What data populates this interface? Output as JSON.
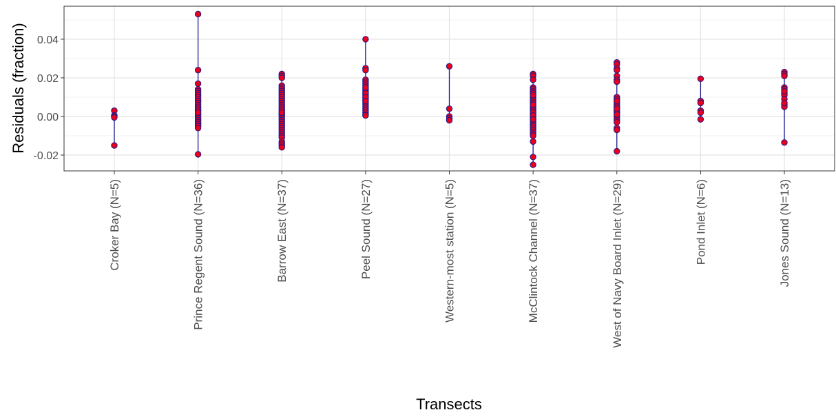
{
  "chart_data": {
    "type": "strip",
    "x_label": "Transects",
    "y_label": "Residuals (fraction)",
    "ylim": [
      -0.0282,
      0.0571
    ],
    "yticks": [
      {
        "value": -0.02,
        "label": "-0.02"
      },
      {
        "value": 0,
        "label": "0.00"
      },
      {
        "value": 0.02,
        "label": "0.02"
      },
      {
        "value": 0.04,
        "label": "0.04"
      }
    ],
    "y_minor_grid": [
      -0.01,
      0.01,
      0.03,
      0.05
    ],
    "grid": true,
    "point_fill": "#e8001c",
    "point_stroke": "#1a1a8c",
    "line_color": "#1a1a8c",
    "groups": [
      {
        "name": "Croker Bay (N=5)",
        "values": [
          0.003,
          0.0005,
          0,
          -0.0005,
          -0.015
        ]
      },
      {
        "name": "Prince Regent Sound (N=36)",
        "values": [
          0.053,
          0.024,
          0.017,
          0.014,
          0.013,
          0.012,
          0.011,
          0.01,
          0.009,
          0.008,
          0.008,
          0.007,
          0.006,
          0.005,
          0.005,
          0.004,
          0.003,
          0.003,
          0.002,
          0.001,
          0.001,
          0,
          0,
          -0.001,
          -0.001,
          -0.002,
          -0.002,
          -0.003,
          -0.003,
          -0.004,
          -0.004,
          -0.005,
          -0.005,
          -0.006,
          0.002,
          -0.0196
        ]
      },
      {
        "name": "Barrow East (N=37)",
        "values": [
          0.022,
          0.021,
          0.02,
          0.016,
          0.015,
          0.014,
          0.013,
          0.012,
          0.011,
          0.01,
          0.009,
          0.008,
          0.007,
          0.006,
          0.005,
          0.004,
          0.003,
          0.002,
          0.001,
          0.001,
          0,
          -0.001,
          -0.002,
          -0.003,
          -0.004,
          -0.005,
          -0.006,
          -0.007,
          -0.008,
          -0.009,
          -0.01,
          -0.011,
          -0.013,
          -0.014,
          -0.015,
          -0.016,
          0.002
        ]
      },
      {
        "name": "Peel Sound (N=27)",
        "values": [
          0.04,
          0.025,
          0.024,
          0.019,
          0.018,
          0.017,
          0.016,
          0.015,
          0.014,
          0.013,
          0.012,
          0.011,
          0.01,
          0.009,
          0.008,
          0.007,
          0.006,
          0.005,
          0.004,
          0.003,
          0.002,
          0.001,
          0.015,
          0.012,
          0.01,
          0.008,
          0.0005
        ]
      },
      {
        "name": "Western-most station (N=5)",
        "values": [
          0.026,
          0.004,
          0,
          -0.001,
          -0.002
        ]
      },
      {
        "name": "McClintock Channel (N=37)",
        "values": [
          0.022,
          0.021,
          0.019,
          0.015,
          0.014,
          0.013,
          0.012,
          0.011,
          0.01,
          0.009,
          0.008,
          0.007,
          0.006,
          0.005,
          0.004,
          0.003,
          0.002,
          0.001,
          0,
          -0.001,
          -0.002,
          -0.003,
          -0.004,
          -0.005,
          -0.006,
          -0.007,
          -0.008,
          -0.009,
          -0.01,
          -0.013,
          -0.021,
          -0.025,
          0.002,
          0.0005,
          -0.0015,
          0.006,
          0.011
        ]
      },
      {
        "name": "West of Navy Board Inlet (N=29)",
        "values": [
          0.028,
          0.027,
          0.025,
          0.024,
          0.021,
          0.019,
          0.018,
          0.01,
          0.009,
          0.008,
          0.007,
          0.006,
          0.005,
          0.004,
          0.003,
          0.002,
          0.001,
          0,
          -0.001,
          -0.002,
          -0.003,
          -0.006,
          -0.007,
          -0.018,
          0.005,
          0.003,
          0.008,
          0.001,
          0.004
        ]
      },
      {
        "name": "Pond Inlet (N=6)",
        "values": [
          0.0195,
          0.008,
          0.007,
          0.003,
          0.002,
          -0.0015
        ]
      },
      {
        "name": "Jones Sound (N=13)",
        "values": [
          0.023,
          0.022,
          0.021,
          0.015,
          0.014,
          0.012,
          0.011,
          0.009,
          0.006,
          0.005,
          0.007,
          0.013,
          -0.0135
        ]
      }
    ]
  }
}
